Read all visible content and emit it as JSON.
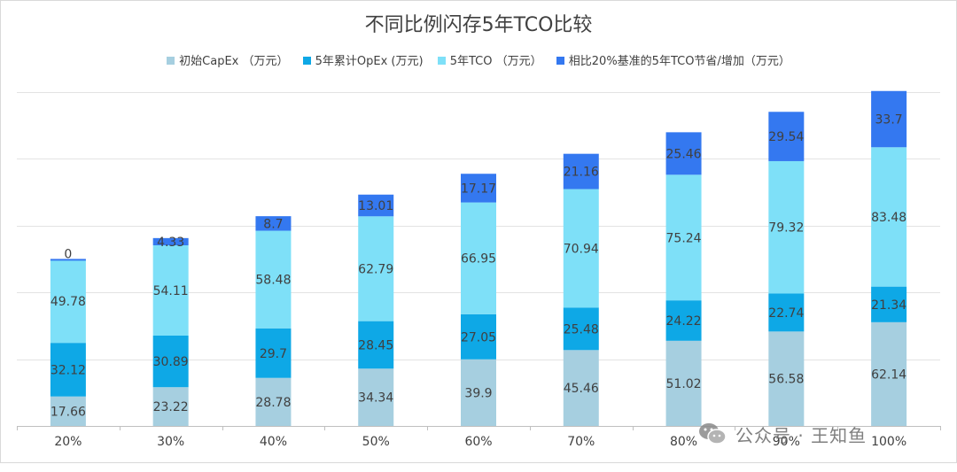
{
  "chart_data": {
    "type": "bar",
    "stacked": true,
    "title": "不同比例闪存5年TCO比较",
    "categories": [
      "20%",
      "30%",
      "40%",
      "50%",
      "60%",
      "70%",
      "80%",
      "90%",
      "100%"
    ],
    "series": [
      {
        "name": "初始CapEx （万元）",
        "color": "#a6cfe0",
        "values": [
          17.66,
          23.22,
          28.78,
          34.34,
          39.9,
          45.46,
          51.02,
          56.58,
          62.14
        ]
      },
      {
        "name": "5年累计OpEx (万元)",
        "color": "#0ea8e6",
        "values": [
          32.12,
          30.89,
          29.7,
          28.45,
          27.05,
          25.48,
          24.22,
          22.74,
          21.34
        ]
      },
      {
        "name": "5年TCO （万元）",
        "color": "#7ee0f8",
        "values": [
          49.78,
          54.11,
          58.48,
          62.79,
          66.95,
          70.94,
          75.24,
          79.32,
          83.48
        ]
      },
      {
        "name": "相比20%基准的5年TCO节省/增加（万元）",
        "color": "#3478f0",
        "values": [
          0,
          4.33,
          8.7,
          13.01,
          17.17,
          21.16,
          25.46,
          29.54,
          33.7
        ]
      }
    ],
    "ylim": [
      0,
      200
    ],
    "grid": true,
    "legend_position": "top",
    "xlabel": "",
    "ylabel": ""
  },
  "watermark": {
    "text": "公众号 · 王知鱼"
  }
}
